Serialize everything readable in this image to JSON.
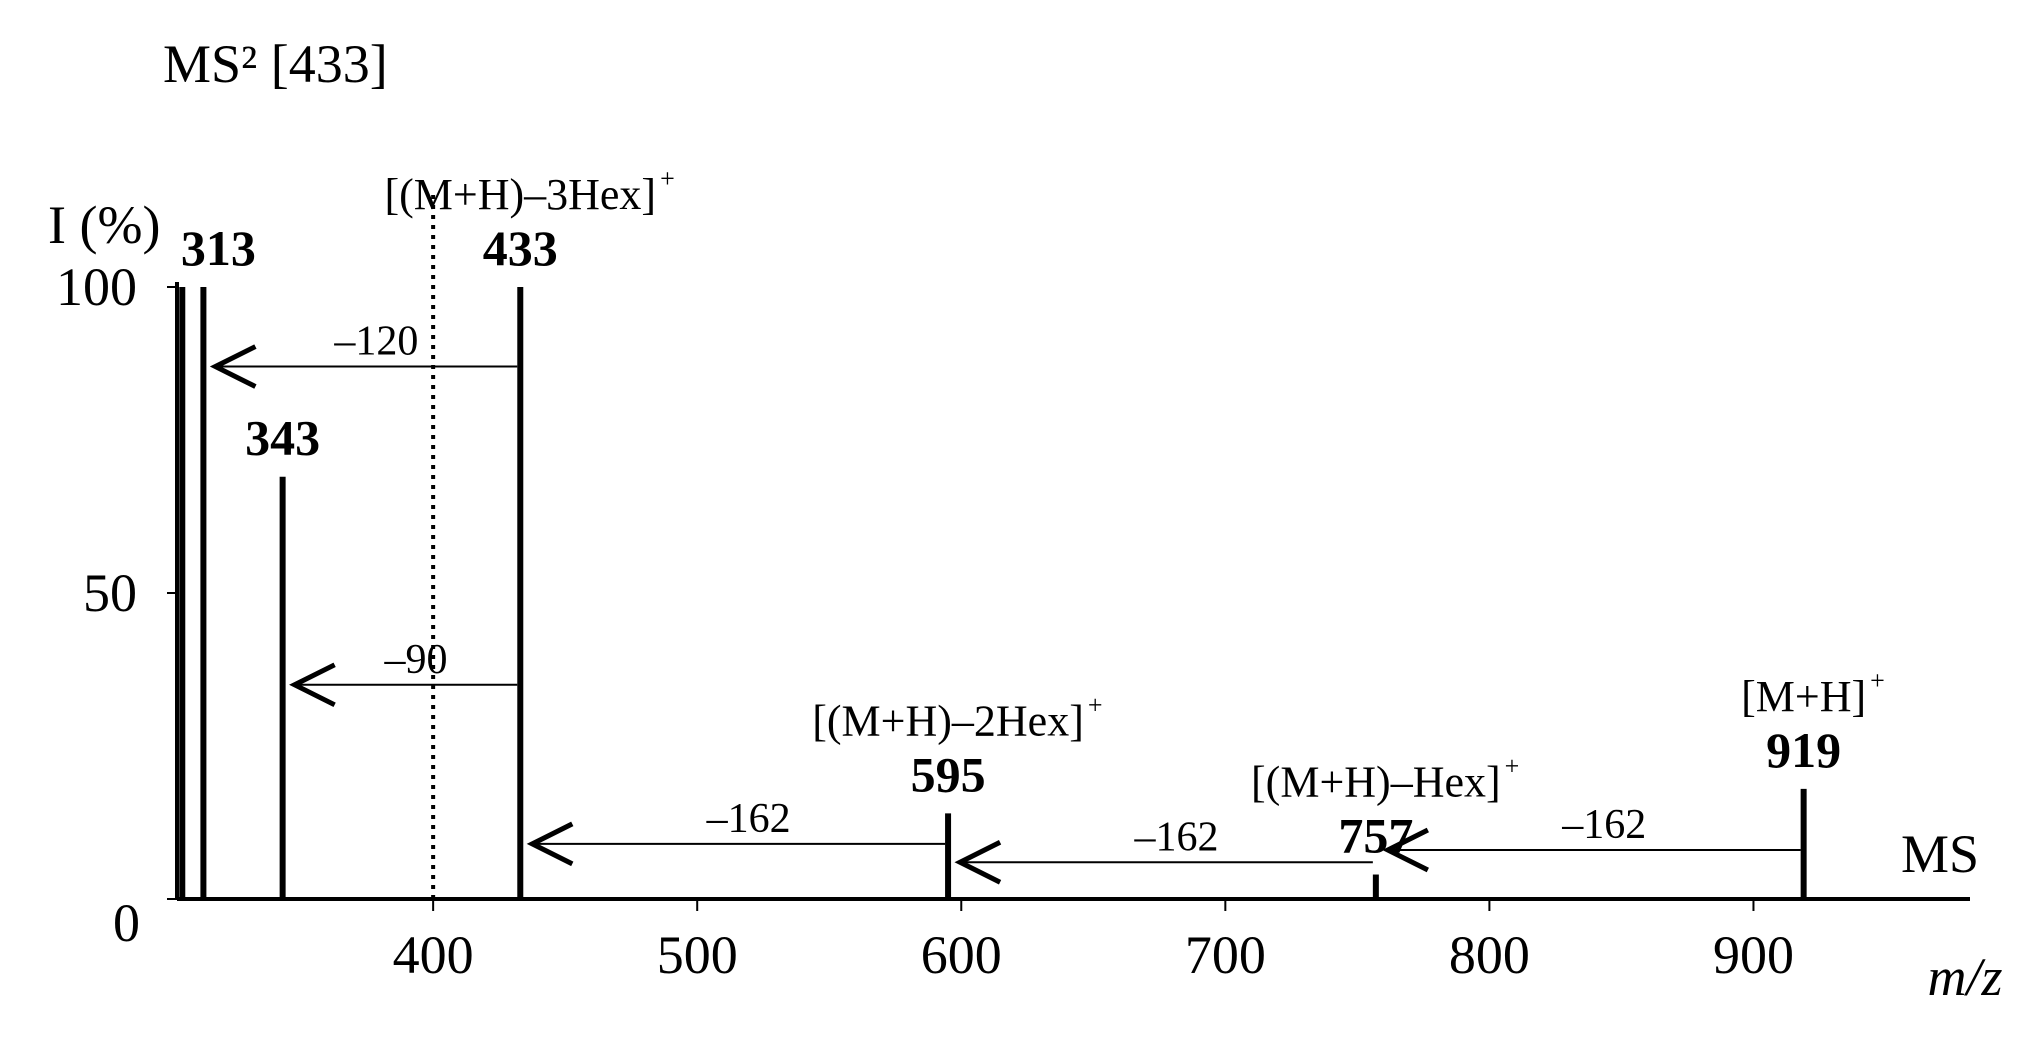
{
  "chart_data": {
    "type": "stem",
    "title": "MS² [433]",
    "y_label": "I (%)",
    "x_label": "m/z",
    "region_label": "MS",
    "x": [
      305,
      313,
      343,
      433,
      595,
      757,
      919
    ],
    "values": [
      100,
      100,
      69,
      100,
      14,
      4,
      18
    ],
    "value_labels": [
      null,
      "313",
      "343",
      "433",
      "595",
      "757",
      "919"
    ],
    "ion_labels": [
      null,
      null,
      null,
      "[(M+H)–3Hex]",
      "[(M+H)–2Hex]",
      "[(M+H)–Hex]",
      "[M+H]"
    ],
    "ion_charge": "+",
    "losses": [
      "–120",
      "–90",
      "–162",
      "–162",
      "–162"
    ],
    "color": "#000000",
    "xlim": [
      303,
      982
    ],
    "xticks": [
      400,
      500,
      600,
      700,
      800,
      900
    ],
    "ylim": [
      0,
      100
    ],
    "yticks": [
      0,
      50,
      100
    ]
  }
}
